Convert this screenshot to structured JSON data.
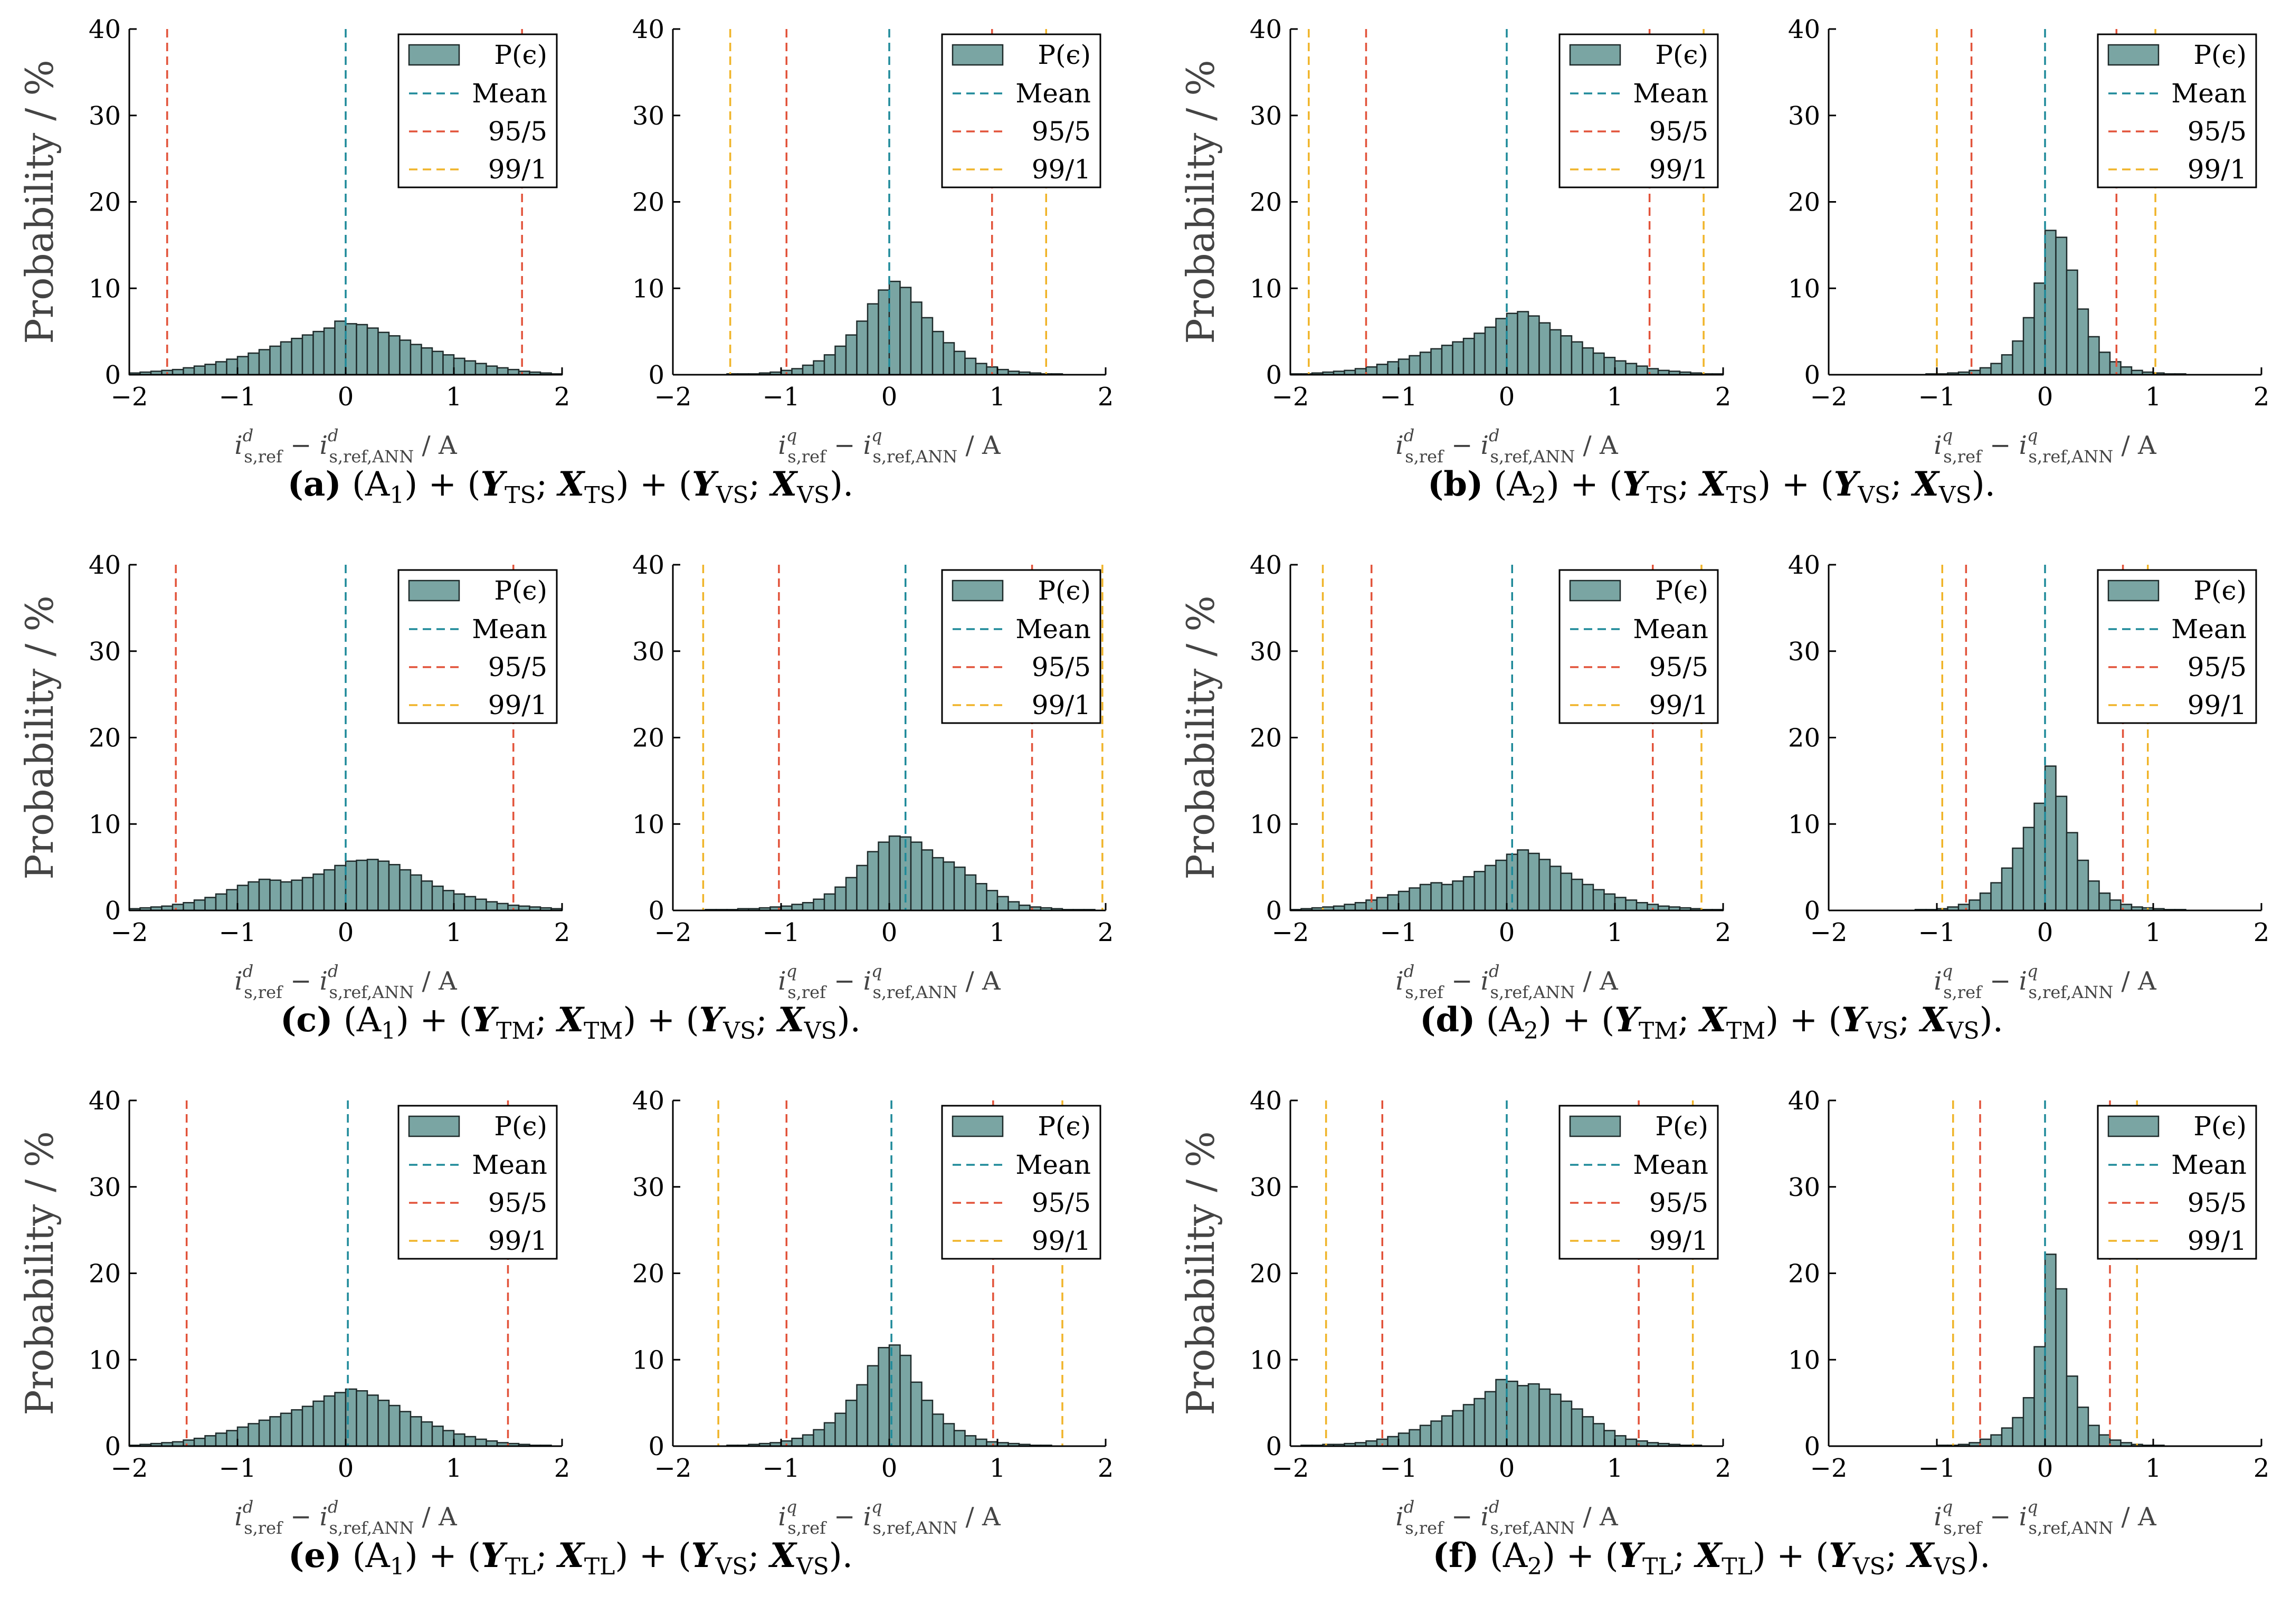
{
  "figure": {
    "y_axis_label": "Probability / %",
    "x_label_d": {
      "main": "i",
      "sup": "d",
      "sub1": "s,ref",
      "minus": " − ",
      "sub2": "s,ref,ANN",
      "unit": " / A"
    },
    "x_label_q": {
      "main": "i",
      "sup": "q",
      "sub1": "s,ref",
      "minus": " − ",
      "sub2": "s,ref,ANN",
      "unit": " / A"
    },
    "legend": {
      "hist": "P(ϵ)",
      "mean": "Mean",
      "p95": "95/5",
      "p99": "99/1"
    },
    "colors": {
      "bar_fill": "#7aa5a3",
      "bar_stroke": "#1e2a2a",
      "mean": "#1f8a9a",
      "p95": "#e2533a",
      "p99": "#f0b429",
      "axis": "#000000"
    }
  },
  "captions": [
    {
      "label": "(a)",
      "arch": "(A",
      "arch_sub": "1",
      "t_var": "Y",
      "t_sub": "TS",
      "x_var": "X",
      "v_var": "Y",
      "v_sub": "VS",
      "xv_var": "X"
    },
    {
      "label": "(b)",
      "arch": "(A",
      "arch_sub": "2",
      "t_var": "Y",
      "t_sub": "TS",
      "x_var": "X",
      "v_var": "Y",
      "v_sub": "VS",
      "xv_var": "X"
    },
    {
      "label": "(c)",
      "arch": "(A",
      "arch_sub": "1",
      "t_var": "Y",
      "t_sub": "TM",
      "x_var": "X",
      "v_var": "Y",
      "v_sub": "VS",
      "xv_var": "X"
    },
    {
      "label": "(d)",
      "arch": "(A",
      "arch_sub": "2",
      "t_var": "Y",
      "t_sub": "TM",
      "x_var": "X",
      "v_var": "Y",
      "v_sub": "VS",
      "xv_var": "X"
    },
    {
      "label": "(e)",
      "arch": "(A",
      "arch_sub": "1",
      "t_var": "Y",
      "t_sub": "TL",
      "x_var": "X",
      "v_var": "Y",
      "v_sub": "VS",
      "xv_var": "X"
    },
    {
      "label": "(f)",
      "arch": "(A",
      "arch_sub": "2",
      "t_var": "Y",
      "t_sub": "TL",
      "x_var": "X",
      "v_var": "Y",
      "v_sub": "VS",
      "xv_var": "X"
    }
  ],
  "chart_data": [
    {
      "type": "bar",
      "panel": "a-d",
      "component": "d",
      "xlim": [
        -2,
        2
      ],
      "ylim": [
        0,
        40
      ],
      "xticks": [
        -2,
        -1,
        0,
        1,
        2
      ],
      "yticks": [
        0,
        10,
        20,
        30,
        40
      ],
      "bin_start": -2.0,
      "bin_width": 0.1,
      "values": [
        0.2,
        0.3,
        0.4,
        0.5,
        0.6,
        0.8,
        1.0,
        1.2,
        1.5,
        1.8,
        2.1,
        2.5,
        2.9,
        3.3,
        3.8,
        4.2,
        4.6,
        5.0,
        5.4,
        6.2,
        5.9,
        5.8,
        5.4,
        4.9,
        4.5,
        4.0,
        3.5,
        3.1,
        2.7,
        2.3,
        1.9,
        1.6,
        1.3,
        1.0,
        0.8,
        0.6,
        0.4,
        0.3,
        0.2,
        0.1
      ],
      "mean": 0.0,
      "p95": [
        -1.65,
        1.63
      ],
      "p99": null
    },
    {
      "type": "bar",
      "panel": "a-q",
      "component": "q",
      "xlim": [
        -2,
        2
      ],
      "ylim": [
        0,
        40
      ],
      "xticks": [
        -2,
        -1,
        0,
        1,
        2
      ],
      "yticks": [
        0,
        10,
        20,
        30,
        40
      ],
      "bin_start": -2.0,
      "bin_width": 0.1,
      "values": [
        0,
        0,
        0,
        0,
        0,
        0.1,
        0.1,
        0.1,
        0.2,
        0.3,
        0.5,
        0.7,
        1.1,
        1.6,
        2.3,
        3.3,
        4.6,
        6.2,
        8.2,
        9.8,
        10.8,
        10.1,
        8.4,
        6.6,
        5.0,
        3.7,
        2.7,
        1.9,
        1.3,
        0.9,
        0.6,
        0.4,
        0.3,
        0.2,
        0.1,
        0.1,
        0,
        0,
        0,
        0
      ],
      "mean": 0.0,
      "p95": [
        -0.95,
        0.95
      ],
      "p99": [
        -1.47,
        1.45
      ]
    },
    {
      "type": "bar",
      "panel": "b-d",
      "component": "d",
      "xlim": [
        -2,
        2
      ],
      "ylim": [
        0,
        40
      ],
      "xticks": [
        -2,
        -1,
        0,
        1,
        2
      ],
      "yticks": [
        0,
        10,
        20,
        30,
        40
      ],
      "bin_start": -2.0,
      "bin_width": 0.1,
      "values": [
        0.1,
        0.1,
        0.2,
        0.3,
        0.4,
        0.5,
        0.7,
        0.9,
        1.2,
        1.5,
        1.8,
        2.2,
        2.6,
        3.0,
        3.4,
        3.8,
        4.2,
        4.8,
        5.5,
        6.5,
        7.1,
        7.3,
        6.8,
        6.0,
        5.2,
        4.5,
        3.8,
        3.1,
        2.5,
        2.0,
        1.6,
        1.3,
        1.0,
        0.7,
        0.5,
        0.4,
        0.3,
        0.2,
        0.1,
        0.1
      ],
      "mean": 0.0,
      "p95": [
        -1.3,
        1.32
      ],
      "p99": [
        -1.83,
        1.82
      ]
    },
    {
      "type": "bar",
      "panel": "b-q",
      "component": "q",
      "xlim": [
        -2,
        2
      ],
      "ylim": [
        0,
        40
      ],
      "xticks": [
        -2,
        -1,
        0,
        1,
        2
      ],
      "yticks": [
        0,
        10,
        20,
        30,
        40
      ],
      "bin_start": -2.0,
      "bin_width": 0.1,
      "values": [
        0,
        0,
        0,
        0,
        0,
        0,
        0,
        0,
        0,
        0.1,
        0.1,
        0.2,
        0.3,
        0.5,
        0.8,
        1.3,
        2.3,
        3.9,
        6.6,
        10.6,
        16.7,
        15.9,
        12.1,
        7.6,
        4.4,
        2.6,
        1.5,
        0.9,
        0.5,
        0.3,
        0.2,
        0.1,
        0.1,
        0,
        0,
        0,
        0,
        0,
        0,
        0
      ],
      "mean": 0.0,
      "p95": [
        -0.68,
        0.66
      ],
      "p99": [
        -1.0,
        1.02
      ]
    },
    {
      "type": "bar",
      "panel": "c-d",
      "component": "d",
      "xlim": [
        -2,
        2
      ],
      "ylim": [
        0,
        40
      ],
      "xticks": [
        -2,
        -1,
        0,
        1,
        2
      ],
      "yticks": [
        0,
        10,
        20,
        30,
        40
      ],
      "bin_start": -2.0,
      "bin_width": 0.1,
      "values": [
        0.2,
        0.3,
        0.4,
        0.5,
        0.7,
        0.9,
        1.2,
        1.5,
        1.9,
        2.4,
        2.9,
        3.3,
        3.6,
        3.5,
        3.3,
        3.5,
        3.8,
        4.2,
        4.7,
        5.2,
        5.7,
        5.8,
        5.9,
        5.7,
        5.3,
        4.7,
        4.1,
        3.4,
        2.8,
        2.3,
        1.9,
        1.6,
        1.3,
        1.0,
        0.8,
        0.6,
        0.5,
        0.4,
        0.3,
        0.2
      ],
      "mean": 0.0,
      "p95": [
        -1.57,
        1.55
      ],
      "p99": null
    },
    {
      "type": "bar",
      "panel": "c-q",
      "component": "q",
      "xlim": [
        -2,
        2
      ],
      "ylim": [
        0,
        40
      ],
      "xticks": [
        -2,
        -1,
        0,
        1,
        2
      ],
      "yticks": [
        0,
        10,
        20,
        30,
        40
      ],
      "bin_start": -2.0,
      "bin_width": 0.1,
      "values": [
        0,
        0,
        0,
        0.1,
        0.1,
        0.1,
        0.2,
        0.2,
        0.3,
        0.4,
        0.5,
        0.7,
        0.9,
        1.3,
        1.9,
        2.7,
        3.8,
        5.2,
        6.8,
        7.9,
        8.6,
        8.5,
        7.9,
        7.0,
        6.1,
        5.6,
        5.0,
        4.1,
        3.1,
        2.3,
        1.6,
        1.0,
        0.6,
        0.4,
        0.3,
        0.2,
        0.1,
        0.1,
        0.1,
        0
      ],
      "mean": 0.15,
      "p95": [
        -1.02,
        1.32
      ],
      "p99": [
        -1.72,
        1.97
      ]
    },
    {
      "type": "bar",
      "panel": "d-d",
      "component": "d",
      "xlim": [
        -2,
        2
      ],
      "ylim": [
        0,
        40
      ],
      "xticks": [
        -2,
        -1,
        0,
        1,
        2
      ],
      "yticks": [
        0,
        10,
        20,
        30,
        40
      ],
      "bin_start": -2.0,
      "bin_width": 0.1,
      "values": [
        0.1,
        0.2,
        0.3,
        0.4,
        0.5,
        0.7,
        0.9,
        1.2,
        1.5,
        1.8,
        2.2,
        2.6,
        3.0,
        3.2,
        3.0,
        3.4,
        3.9,
        4.5,
        5.2,
        5.8,
        6.5,
        7.0,
        6.6,
        5.9,
        5.1,
        4.3,
        3.6,
        3.0,
        2.4,
        1.9,
        1.5,
        1.2,
        0.9,
        0.7,
        0.5,
        0.4,
        0.3,
        0.2,
        0.1,
        0.1
      ],
      "mean": 0.05,
      "p95": [
        -1.25,
        1.35
      ],
      "p99": [
        -1.7,
        1.8
      ]
    },
    {
      "type": "bar",
      "panel": "d-q",
      "component": "q",
      "xlim": [
        -2,
        2
      ],
      "ylim": [
        0,
        40
      ],
      "xticks": [
        -2,
        -1,
        0,
        1,
        2
      ],
      "yticks": [
        0,
        10,
        20,
        30,
        40
      ],
      "bin_start": -2.0,
      "bin_width": 0.1,
      "values": [
        0,
        0,
        0,
        0,
        0,
        0,
        0,
        0,
        0.1,
        0.1,
        0.2,
        0.4,
        0.7,
        1.2,
        2.0,
        3.2,
        4.9,
        7.2,
        9.6,
        12.4,
        16.7,
        13.2,
        9.0,
        5.8,
        3.4,
        2.0,
        1.2,
        0.7,
        0.4,
        0.3,
        0.2,
        0.1,
        0.1,
        0,
        0,
        0,
        0,
        0,
        0,
        0
      ],
      "mean": 0.0,
      "p95": [
        -0.73,
        0.72
      ],
      "p99": [
        -0.95,
        0.95
      ]
    },
    {
      "type": "bar",
      "panel": "e-d",
      "component": "d",
      "xlim": [
        -2,
        2
      ],
      "ylim": [
        0,
        40
      ],
      "xticks": [
        -2,
        -1,
        0,
        1,
        2
      ],
      "yticks": [
        0,
        10,
        20,
        30,
        40
      ],
      "bin_start": -2.0,
      "bin_width": 0.1,
      "values": [
        0.1,
        0.2,
        0.3,
        0.4,
        0.5,
        0.7,
        0.9,
        1.2,
        1.5,
        1.8,
        2.2,
        2.6,
        3.0,
        3.4,
        3.8,
        4.2,
        4.6,
        5.2,
        5.8,
        6.2,
        6.6,
        6.4,
        5.9,
        5.3,
        4.7,
        4.0,
        3.4,
        2.8,
        2.3,
        1.8,
        1.4,
        1.1,
        0.8,
        0.6,
        0.4,
        0.3,
        0.2,
        0.1,
        0.1,
        0
      ],
      "mean": 0.02,
      "p95": [
        -1.47,
        1.5
      ],
      "p99": null
    },
    {
      "type": "bar",
      "panel": "e-q",
      "component": "q",
      "xlim": [
        -2,
        2
      ],
      "ylim": [
        0,
        40
      ],
      "xticks": [
        -2,
        -1,
        0,
        1,
        2
      ],
      "yticks": [
        0,
        10,
        20,
        30,
        40
      ],
      "bin_start": -2.0,
      "bin_width": 0.1,
      "values": [
        0,
        0,
        0,
        0,
        0,
        0.1,
        0.1,
        0.2,
        0.3,
        0.4,
        0.6,
        0.9,
        1.3,
        1.9,
        2.7,
        3.8,
        5.3,
        7.1,
        9.3,
        11.4,
        11.7,
        10.5,
        7.4,
        5.3,
        3.7,
        2.6,
        1.8,
        1.2,
        0.8,
        0.5,
        0.4,
        0.3,
        0.2,
        0.1,
        0.1,
        0,
        0,
        0,
        0,
        0
      ],
      "mean": 0.02,
      "p95": [
        -0.95,
        0.96
      ],
      "p99": [
        -1.58,
        1.6
      ]
    },
    {
      "type": "bar",
      "panel": "f-d",
      "component": "d",
      "xlim": [
        -2,
        2
      ],
      "ylim": [
        0,
        40
      ],
      "xticks": [
        -2,
        -1,
        0,
        1,
        2
      ],
      "yticks": [
        0,
        10,
        20,
        30,
        40
      ],
      "bin_start": -2.0,
      "bin_width": 0.1,
      "values": [
        0,
        0.1,
        0.1,
        0.2,
        0.2,
        0.3,
        0.4,
        0.6,
        0.8,
        1.1,
        1.5,
        1.9,
        2.4,
        2.9,
        3.5,
        4.1,
        4.8,
        5.5,
        6.3,
        7.7,
        7.5,
        7.0,
        7.2,
        6.6,
        6.0,
        5.2,
        4.3,
        3.4,
        2.6,
        1.8,
        1.2,
        0.8,
        0.6,
        0.4,
        0.3,
        0.2,
        0.1,
        0.1,
        0,
        0
      ],
      "mean": 0.0,
      "p95": [
        -1.15,
        1.22
      ],
      "p99": [
        -1.67,
        1.72
      ]
    },
    {
      "type": "bar",
      "panel": "f-q",
      "component": "q",
      "xlim": [
        -2,
        2
      ],
      "ylim": [
        0,
        40
      ],
      "xticks": [
        -2,
        -1,
        0,
        1,
        2
      ],
      "yticks": [
        0,
        10,
        20,
        30,
        40
      ],
      "bin_start": -2.0,
      "bin_width": 0.1,
      "values": [
        0,
        0,
        0,
        0,
        0,
        0,
        0,
        0,
        0,
        0,
        0.1,
        0.1,
        0.2,
        0.4,
        0.8,
        1.3,
        2.1,
        3.3,
        5.6,
        11.5,
        22.2,
        18.2,
        8.1,
        4.5,
        2.4,
        1.3,
        0.7,
        0.4,
        0.2,
        0.1,
        0.1,
        0,
        0,
        0,
        0,
        0,
        0,
        0,
        0,
        0
      ],
      "mean": 0.0,
      "p95": [
        -0.6,
        0.6
      ],
      "p99": [
        -0.85,
        0.85
      ]
    }
  ]
}
